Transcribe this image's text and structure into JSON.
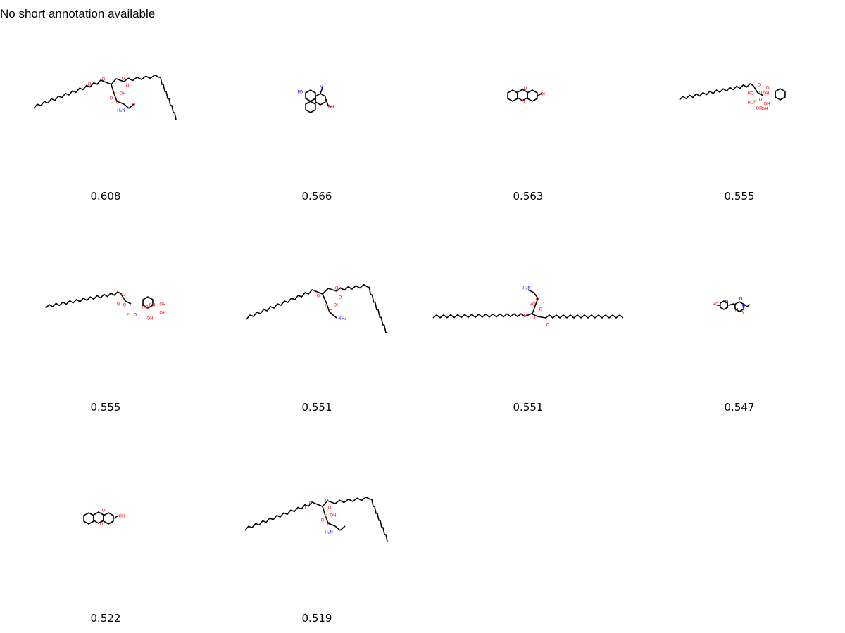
{
  "header": {
    "text": "No short annotation available"
  },
  "results": [
    {
      "score": "0.608",
      "icon": "phosphatidylserine-structure-icon",
      "labels": [
        {
          "text": "O",
          "color": "#ff0000"
        },
        {
          "text": "O",
          "color": "#ff0000"
        },
        {
          "text": "O",
          "color": "#ff0000"
        },
        {
          "text": "O",
          "color": "#ff0000"
        },
        {
          "text": "P",
          "color": "#ff8000"
        },
        {
          "text": "OH",
          "color": "#ff0000"
        },
        {
          "text": "O",
          "color": "#ff0000"
        },
        {
          "text": "O",
          "color": "#ff0000"
        },
        {
          "text": "H₂N",
          "color": "#0000ff"
        },
        {
          "text": "O",
          "color": "#ff0000"
        }
      ]
    },
    {
      "score": "0.566",
      "icon": "ergoline-alkaloid-structure-icon",
      "labels": [
        {
          "text": "HN",
          "color": "#0000ff"
        },
        {
          "text": "N",
          "color": "#0000ff"
        },
        {
          "text": "OH",
          "color": "#ff0000"
        }
      ]
    },
    {
      "score": "0.563",
      "icon": "isoflavone-structure-icon",
      "labels": [
        {
          "text": "O",
          "color": "#ff0000"
        },
        {
          "text": "OH",
          "color": "#ff0000"
        },
        {
          "text": "O",
          "color": "#ff0000"
        }
      ]
    },
    {
      "score": "0.555",
      "icon": "lysophosphatidylinositol-structure-icon",
      "labels": [
        {
          "text": "O",
          "color": "#ff0000"
        },
        {
          "text": "O",
          "color": "#ff0000"
        },
        {
          "text": "HO",
          "color": "#ff0000"
        },
        {
          "text": "P",
          "color": "#ff8000"
        },
        {
          "text": "O",
          "color": "#ff0000"
        },
        {
          "text": "HO",
          "color": "#ff0000"
        },
        {
          "text": "OH",
          "color": "#ff0000"
        },
        {
          "text": "OH",
          "color": "#ff0000"
        },
        {
          "text": "OH",
          "color": "#ff0000"
        },
        {
          "text": "OH",
          "color": "#ff0000"
        },
        {
          "text": "O",
          "color": "#ff0000"
        }
      ]
    },
    {
      "score": "0.555",
      "icon": "lysophosphatidylinositol-structure-icon",
      "labels": [
        {
          "text": "HO",
          "color": "#ff0000"
        },
        {
          "text": "O",
          "color": "#ff0000"
        },
        {
          "text": "O",
          "color": "#ff0000"
        },
        {
          "text": "HO",
          "color": "#ff0000"
        },
        {
          "text": "P",
          "color": "#ff8000"
        },
        {
          "text": "OH",
          "color": "#ff0000"
        },
        {
          "text": "OH",
          "color": "#ff0000"
        },
        {
          "text": "OH",
          "color": "#ff0000"
        },
        {
          "text": "OH",
          "color": "#ff0000"
        },
        {
          "text": "O",
          "color": "#ff0000"
        }
      ]
    },
    {
      "score": "0.551",
      "icon": "phosphatidylethanolamine-structure-icon",
      "labels": [
        {
          "text": "O",
          "color": "#ff0000"
        },
        {
          "text": "O",
          "color": "#ff0000"
        },
        {
          "text": "O",
          "color": "#ff0000"
        },
        {
          "text": "O",
          "color": "#ff0000"
        },
        {
          "text": "P",
          "color": "#ff8000"
        },
        {
          "text": "OH",
          "color": "#ff0000"
        },
        {
          "text": "O",
          "color": "#ff0000"
        },
        {
          "text": "NH₂",
          "color": "#0000ff"
        }
      ]
    },
    {
      "score": "0.551",
      "icon": "phosphatidylethanolamine-structure-icon",
      "labels": [
        {
          "text": "H₂N",
          "color": "#0000ff"
        },
        {
          "text": "O",
          "color": "#ff0000"
        },
        {
          "text": "HO",
          "color": "#ff0000"
        },
        {
          "text": "P",
          "color": "#ff8000"
        },
        {
          "text": "O",
          "color": "#ff0000"
        },
        {
          "text": "O",
          "color": "#ff0000"
        },
        {
          "text": "O",
          "color": "#ff0000"
        },
        {
          "text": "O",
          "color": "#ff0000"
        }
      ]
    },
    {
      "score": "0.547",
      "icon": "pteridinone-structure-icon",
      "labels": [
        {
          "text": "HO",
          "color": "#ff0000"
        },
        {
          "text": "N",
          "color": "#0000ff"
        },
        {
          "text": "N",
          "color": "#0000ff"
        },
        {
          "text": "N",
          "color": "#0000ff"
        },
        {
          "text": "H",
          "color": "#0000ff"
        },
        {
          "text": "O",
          "color": "#ff0000"
        }
      ]
    },
    {
      "score": "0.522",
      "icon": "isoflavone-structure-icon",
      "labels": [
        {
          "text": "O",
          "color": "#ff0000"
        },
        {
          "text": "OH",
          "color": "#ff0000"
        },
        {
          "text": "O",
          "color": "#ff0000"
        }
      ]
    },
    {
      "score": "0.519",
      "icon": "phosphatidylserine-structure-icon",
      "labels": [
        {
          "text": "O",
          "color": "#ff0000"
        },
        {
          "text": "O",
          "color": "#ff0000"
        },
        {
          "text": "O",
          "color": "#ff0000"
        },
        {
          "text": "O",
          "color": "#ff0000"
        },
        {
          "text": "P",
          "color": "#ff8000"
        },
        {
          "text": "OH",
          "color": "#ff0000"
        },
        {
          "text": "O",
          "color": "#ff0000"
        },
        {
          "text": "O",
          "color": "#ff0000"
        },
        {
          "text": "H₂N",
          "color": "#0000ff"
        },
        {
          "text": "O",
          "color": "#ff0000"
        }
      ]
    }
  ]
}
